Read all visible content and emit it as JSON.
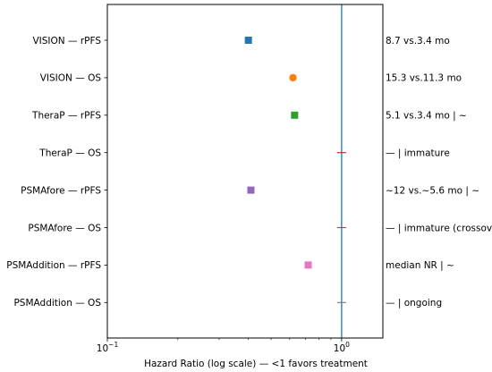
{
  "chart_data": {
    "type": "scatter",
    "title": "",
    "xlabel": "Hazard Ratio (log scale)  —  <1 favors treatment",
    "ylabel": "",
    "x_scale": "log",
    "xlim": [
      0.1,
      1.5
    ],
    "x_ticks": [
      {
        "value": 0.1,
        "base": "10",
        "exp": "−1"
      },
      {
        "value": 1,
        "base": "10",
        "exp": "0"
      }
    ],
    "reference_line": {
      "x": 1,
      "color": "#1f77b4"
    },
    "grid": false,
    "legend": "none",
    "categories": [
      "VISION — rPFS",
      "VISION — OS",
      "TheraP — rPFS",
      "TheraP — OS",
      "PSMAfore — rPFS",
      "PSMAfore — OS",
      "PSMAddition — rPFS",
      "PSMAddition — OS"
    ],
    "points": [
      {
        "label": "VISION — rPFS",
        "hr": 0.4,
        "marker": "square",
        "color": "#1f77b4",
        "annotation": "8.7 vs.3.4 mo"
      },
      {
        "label": "VISION — OS",
        "hr": 0.62,
        "marker": "circle",
        "color": "#ff7f0e",
        "annotation": "15.3 vs.11.3 mo"
      },
      {
        "label": "TheraP — rPFS",
        "hr": 0.63,
        "marker": "square",
        "color": "#2ca02c",
        "annotation": "5.1 vs.3.4 mo | ~"
      },
      {
        "label": "TheraP — OS",
        "hr": 1.0,
        "marker": "tick",
        "color": "#d62728",
        "annotation": "— | immature"
      },
      {
        "label": "PSMAfore — rPFS",
        "hr": 0.41,
        "marker": "square",
        "color": "#9467bd",
        "annotation": "~12 vs.~5.6 mo | ~"
      },
      {
        "label": "PSMAfore — OS",
        "hr": 1.0,
        "marker": "tick",
        "color": "#8c564b",
        "annotation": "— | immature (crossover)"
      },
      {
        "label": "PSMAddition — rPFS",
        "hr": 0.72,
        "marker": "square",
        "color": "#e377c2",
        "annotation": "median NR | ~"
      },
      {
        "label": "PSMAddition — OS",
        "hr": 1.0,
        "marker": "tick",
        "color": "#7f7f7f",
        "annotation": "— | ongoing"
      }
    ]
  }
}
